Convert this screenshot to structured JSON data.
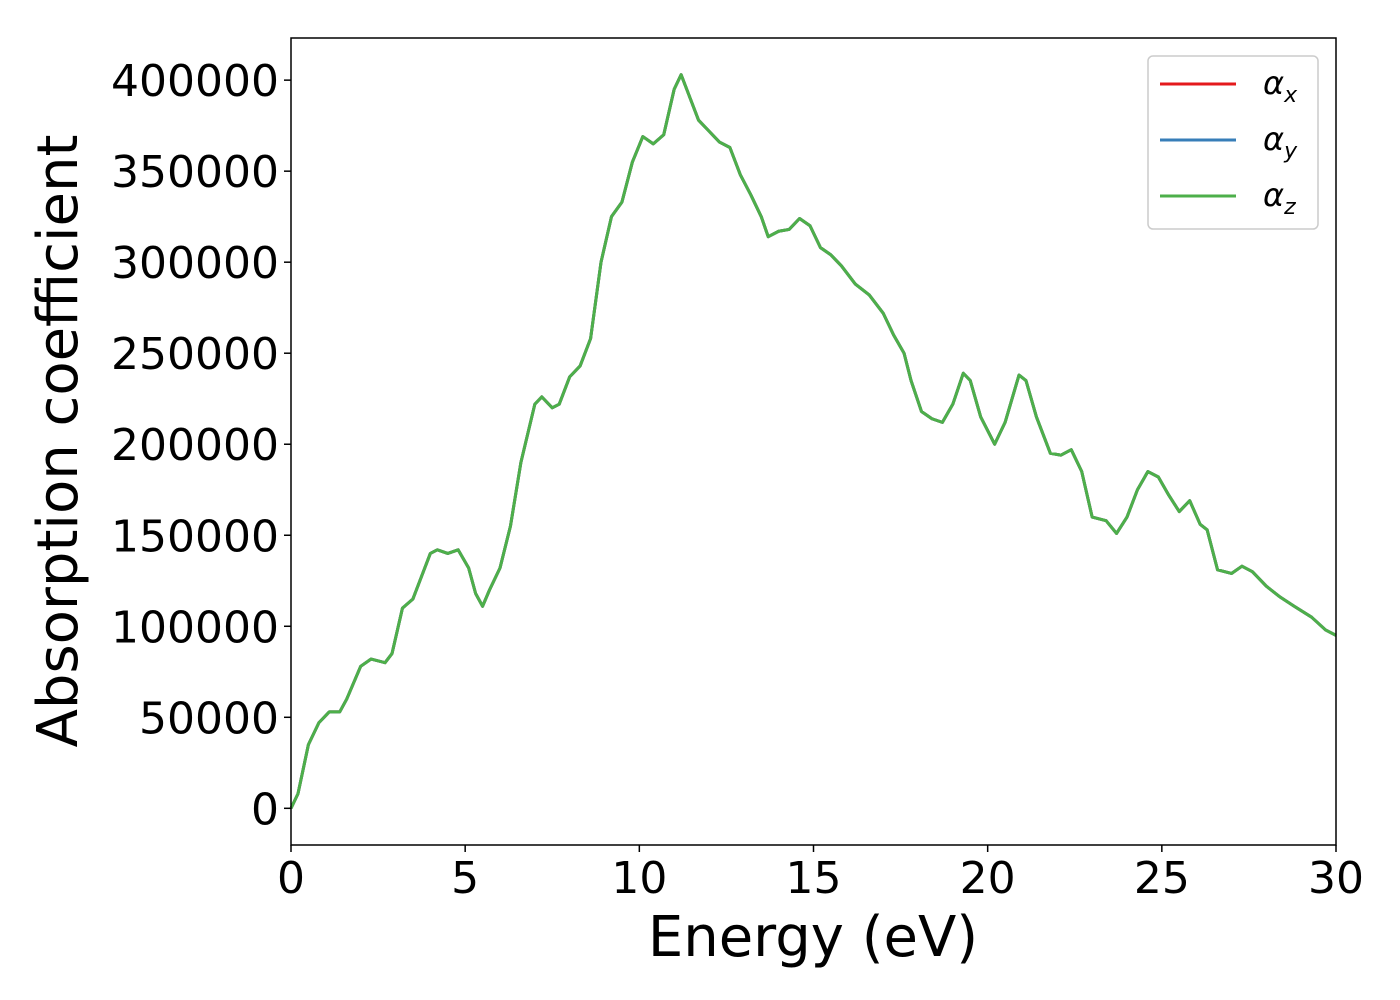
{
  "chart_data": {
    "type": "line",
    "xlabel": "Energy (eV)",
    "ylabel": "Absorption coefficient",
    "x": [
      0,
      0.2,
      0.5,
      0.8,
      1.1,
      1.4,
      1.6,
      2.0,
      2.3,
      2.7,
      2.9,
      3.2,
      3.5,
      3.7,
      4.0,
      4.2,
      4.5,
      4.8,
      5.1,
      5.3,
      5.5,
      5.7,
      6.0,
      6.3,
      6.6,
      7.0,
      7.2,
      7.5,
      7.7,
      8.0,
      8.3,
      8.6,
      8.9,
      9.2,
      9.5,
      9.8,
      10.1,
      10.4,
      10.7,
      11.0,
      11.2,
      11.4,
      11.7,
      12.0,
      12.3,
      12.6,
      12.9,
      13.2,
      13.5,
      13.7,
      14.0,
      14.3,
      14.6,
      14.9,
      15.2,
      15.5,
      15.8,
      16.2,
      16.6,
      17.0,
      17.3,
      17.6,
      17.8,
      18.1,
      18.4,
      18.7,
      19.0,
      19.3,
      19.5,
      19.8,
      20.2,
      20.5,
      20.9,
      21.1,
      21.4,
      21.8,
      22.1,
      22.4,
      22.7,
      23.0,
      23.4,
      23.7,
      24.0,
      24.3,
      24.6,
      24.9,
      25.2,
      25.5,
      25.8,
      26.1,
      26.3,
      26.6,
      27.0,
      27.3,
      27.6,
      28.0,
      28.4,
      28.8,
      29.3,
      29.7,
      30.0
    ],
    "series": [
      {
        "name": "αx",
        "color": "#e41a1c",
        "values": [
          0,
          8000,
          35000,
          47000,
          53000,
          53000,
          60000,
          78000,
          82000,
          80000,
          85000,
          110000,
          115000,
          125000,
          140000,
          142000,
          140000,
          142000,
          132000,
          118000,
          111000,
          120000,
          132000,
          155000,
          190000,
          222000,
          226000,
          220000,
          222000,
          237000,
          243000,
          258000,
          300000,
          325000,
          333000,
          355000,
          369000,
          365000,
          370000,
          395000,
          403000,
          393000,
          378000,
          372000,
          366000,
          363000,
          348000,
          337000,
          325000,
          314000,
          317000,
          318000,
          324000,
          320000,
          308000,
          304000,
          298000,
          288000,
          282000,
          272000,
          260000,
          250000,
          235000,
          218000,
          214000,
          212000,
          222000,
          239000,
          235000,
          215000,
          200000,
          212000,
          238000,
          235000,
          215000,
          195000,
          194000,
          197000,
          185000,
          160000,
          158000,
          151000,
          160000,
          175000,
          185000,
          182000,
          172000,
          163000,
          169000,
          156000,
          153000,
          131000,
          129000,
          133000,
          130000,
          122000,
          116000,
          111000,
          105000,
          98000,
          95000
        ]
      },
      {
        "name": "αy",
        "color": "#377eb8",
        "values": [
          0,
          8000,
          35000,
          47000,
          53000,
          53000,
          60000,
          78000,
          82000,
          80000,
          85000,
          110000,
          115000,
          125000,
          140000,
          142000,
          140000,
          142000,
          132000,
          118000,
          111000,
          120000,
          132000,
          155000,
          190000,
          222000,
          226000,
          220000,
          222000,
          237000,
          243000,
          258000,
          300000,
          325000,
          333000,
          355000,
          369000,
          365000,
          370000,
          395000,
          403000,
          393000,
          378000,
          372000,
          366000,
          363000,
          348000,
          337000,
          325000,
          314000,
          317000,
          318000,
          324000,
          320000,
          308000,
          304000,
          298000,
          288000,
          282000,
          272000,
          260000,
          250000,
          235000,
          218000,
          214000,
          212000,
          222000,
          239000,
          235000,
          215000,
          200000,
          212000,
          238000,
          235000,
          215000,
          195000,
          194000,
          197000,
          185000,
          160000,
          158000,
          151000,
          160000,
          175000,
          185000,
          182000,
          172000,
          163000,
          169000,
          156000,
          153000,
          131000,
          129000,
          133000,
          130000,
          122000,
          116000,
          111000,
          105000,
          98000,
          95000
        ]
      },
      {
        "name": "αz",
        "color": "#4daf4a",
        "values": [
          0,
          8000,
          35000,
          47000,
          53000,
          53000,
          60000,
          78000,
          82000,
          80000,
          85000,
          110000,
          115000,
          125000,
          140000,
          142000,
          140000,
          142000,
          132000,
          118000,
          111000,
          120000,
          132000,
          155000,
          190000,
          222000,
          226000,
          220000,
          222000,
          237000,
          243000,
          258000,
          300000,
          325000,
          333000,
          355000,
          369000,
          365000,
          370000,
          395000,
          403000,
          393000,
          378000,
          372000,
          366000,
          363000,
          348000,
          337000,
          325000,
          314000,
          317000,
          318000,
          324000,
          320000,
          308000,
          304000,
          298000,
          288000,
          282000,
          272000,
          260000,
          250000,
          235000,
          218000,
          214000,
          212000,
          222000,
          239000,
          235000,
          215000,
          200000,
          212000,
          238000,
          235000,
          215000,
          195000,
          194000,
          197000,
          185000,
          160000,
          158000,
          151000,
          160000,
          175000,
          185000,
          182000,
          172000,
          163000,
          169000,
          156000,
          153000,
          131000,
          129000,
          133000,
          130000,
          122000,
          116000,
          111000,
          105000,
          98000,
          95000
        ]
      }
    ],
    "xlim": [
      0,
      30
    ],
    "xticks": [
      0,
      5,
      10,
      15,
      20,
      25,
      30
    ],
    "ylim": [
      -20150,
      423150
    ],
    "yticks": [
      0,
      50000,
      100000,
      150000,
      200000,
      250000,
      300000,
      350000,
      400000
    ],
    "legend": "upper right"
  }
}
